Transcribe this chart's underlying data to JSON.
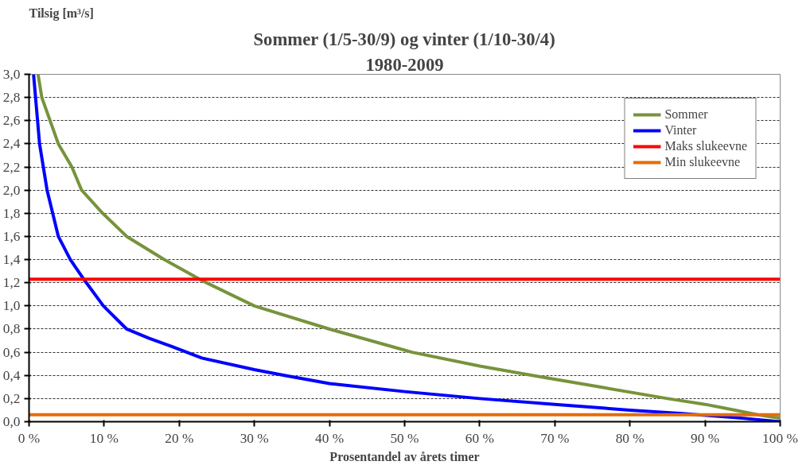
{
  "chart_data": {
    "type": "line",
    "title": "Sommer (1/5-30/9) og vinter (1/10-30/4)",
    "subtitle": "1980-2009",
    "xlabel": "Prosentandel av årets timer",
    "ylabel": "Tilsig [m³/s]",
    "xlim": [
      0,
      100
    ],
    "ylim": [
      0,
      3
    ],
    "xticks": [
      {
        "value": 0,
        "label": "0 %"
      },
      {
        "value": 10,
        "label": "10 %"
      },
      {
        "value": 20,
        "label": "20 %"
      },
      {
        "value": 30,
        "label": "30 %"
      },
      {
        "value": 40,
        "label": "40 %"
      },
      {
        "value": 50,
        "label": "50 %"
      },
      {
        "value": 60,
        "label": "60 %"
      },
      {
        "value": 70,
        "label": "70 %"
      },
      {
        "value": 80,
        "label": "80 %"
      },
      {
        "value": 90,
        "label": "90 %"
      },
      {
        "value": 100,
        "label": "100 %"
      }
    ],
    "yticks": [
      {
        "value": 0,
        "label": "0,0"
      },
      {
        "value": 0.2,
        "label": "0,2"
      },
      {
        "value": 0.4,
        "label": "0,4"
      },
      {
        "value": 0.6,
        "label": "0,6"
      },
      {
        "value": 0.8,
        "label": "0,8"
      },
      {
        "value": 1.0,
        "label": "1,0"
      },
      {
        "value": 1.2,
        "label": "1,2"
      },
      {
        "value": 1.4,
        "label": "1,4"
      },
      {
        "value": 1.6,
        "label": "1,6"
      },
      {
        "value": 1.8,
        "label": "1,8"
      },
      {
        "value": 2.0,
        "label": "2,0"
      },
      {
        "value": 2.2,
        "label": "2,2"
      },
      {
        "value": 2.4,
        "label": "2,4"
      },
      {
        "value": 2.6,
        "label": "2,6"
      },
      {
        "value": 2.8,
        "label": "2,8"
      },
      {
        "value": 3.0,
        "label": "3,0"
      }
    ],
    "grid": "y",
    "legend": "top right",
    "marker": "none",
    "line_style": "solid",
    "series": [
      {
        "name": "Sommer",
        "color": "#77933c",
        "x": [
          1.2,
          1.7,
          2.8,
          3.9,
          5.7,
          7.0,
          9.8,
          13,
          18,
          23,
          30,
          40,
          51,
          60,
          67,
          76,
          85,
          90,
          94,
          97,
          100
        ],
        "values": [
          3.0,
          2.8,
          2.6,
          2.4,
          2.2,
          2.0,
          1.8,
          1.6,
          1.4,
          1.22,
          1.0,
          0.8,
          0.6,
          0.48,
          0.4,
          0.3,
          0.2,
          0.15,
          0.1,
          0.06,
          0.03
        ]
      },
      {
        "name": "Vinter",
        "color": "#0000ff",
        "x": [
          0.6,
          1.0,
          1.4,
          2.4,
          3.9,
          5.5,
          7.4,
          9.9,
          13,
          16,
          19,
          23,
          30,
          34,
          40,
          50,
          60,
          70,
          80,
          87,
          95,
          100
        ],
        "values": [
          3.0,
          2.7,
          2.4,
          2.0,
          1.6,
          1.4,
          1.22,
          1.0,
          0.8,
          0.72,
          0.65,
          0.55,
          0.45,
          0.4,
          0.33,
          0.26,
          0.2,
          0.15,
          0.1,
          0.07,
          0.03,
          0.0
        ]
      },
      {
        "name": "Maks slukeevne",
        "color": "#ff0000",
        "x": [
          0,
          100
        ],
        "values": [
          1.23,
          1.23
        ]
      },
      {
        "name": "Min slukeevne",
        "color": "#e46c0a",
        "x": [
          0,
          100
        ],
        "values": [
          0.06,
          0.06
        ]
      }
    ]
  }
}
